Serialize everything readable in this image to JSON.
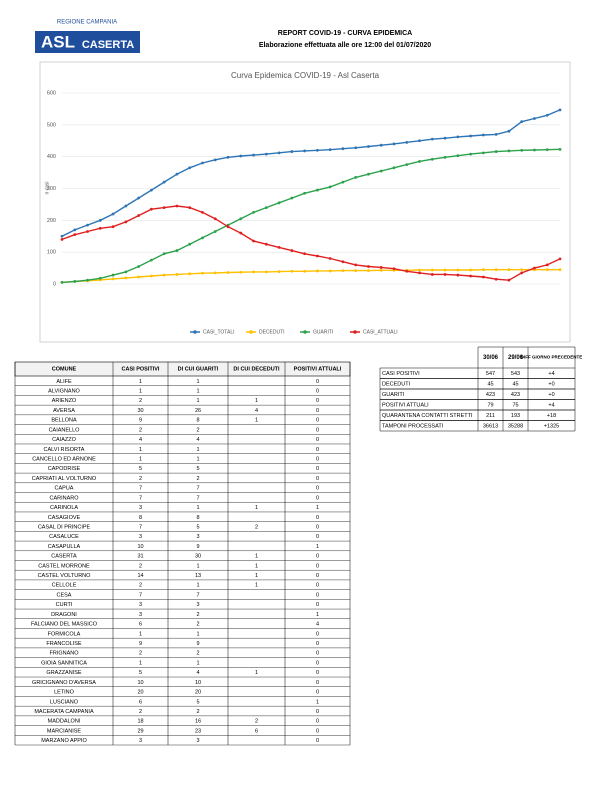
{
  "header": {
    "logo_region": "REGIONE CAMPANIA",
    "logo_name": "ASL",
    "logo_sub": "CASERTA",
    "title": "REPORT COVID-19 - CURVA EPIDEMICA",
    "subtitle": "Elaborazione effettuata alle ore 12:00 del 01/07/2020"
  },
  "chart_data": {
    "type": "line",
    "title": "Curva Epidemica COVID-19 - Asl Caserta",
    "y_label": "n casi",
    "categories": [
      null,
      null,
      null,
      null,
      null,
      null,
      null,
      null,
      null,
      null,
      null,
      null,
      null,
      null,
      null,
      null,
      null,
      null,
      null,
      null,
      null,
      null,
      null,
      null,
      null,
      null,
      null,
      null,
      null,
      null,
      null,
      null,
      null,
      null,
      null,
      null,
      null,
      null,
      null,
      null
    ],
    "ylim": [
      0,
      600
    ],
    "yticks": [
      0,
      100,
      200,
      300,
      400,
      500,
      600
    ],
    "grid": true,
    "series": [
      {
        "name": "CASI_TOTALI",
        "color": "#2e75b6",
        "values": [
          150,
          170,
          185,
          200,
          220,
          245,
          270,
          295,
          320,
          345,
          365,
          380,
          390,
          398,
          402,
          405,
          408,
          412,
          416,
          418,
          420,
          422,
          425,
          428,
          432,
          436,
          440,
          445,
          450,
          455,
          458,
          462,
          465,
          468,
          470,
          480,
          510,
          520,
          530,
          547
        ]
      },
      {
        "name": "DECEDUTI",
        "color": "#ffc000",
        "values": [
          5,
          8,
          10,
          13,
          16,
          19,
          22,
          25,
          28,
          30,
          32,
          34,
          35,
          36,
          37,
          38,
          38,
          39,
          40,
          40,
          41,
          41,
          42,
          42,
          42,
          43,
          43,
          43,
          44,
          44,
          44,
          44,
          44,
          45,
          45,
          45,
          45,
          45,
          45,
          45
        ]
      },
      {
        "name": "GUARITI",
        "color": "#2ca24c",
        "values": [
          5,
          8,
          12,
          18,
          28,
          38,
          55,
          75,
          95,
          105,
          125,
          145,
          165,
          185,
          205,
          225,
          240,
          255,
          270,
          285,
          295,
          305,
          320,
          335,
          345,
          355,
          365,
          375,
          385,
          392,
          398,
          403,
          408,
          412,
          416,
          418,
          420,
          421,
          422,
          423
        ]
      },
      {
        "name": "CASI_ATTUALI",
        "color": "#e02020",
        "values": [
          140,
          155,
          165,
          175,
          180,
          195,
          215,
          235,
          240,
          245,
          240,
          225,
          205,
          180,
          160,
          135,
          125,
          115,
          105,
          95,
          88,
          80,
          70,
          60,
          55,
          52,
          48,
          40,
          35,
          30,
          30,
          28,
          25,
          22,
          15,
          12,
          35,
          50,
          60,
          79
        ]
      }
    ]
  },
  "municipalities": {
    "header": [
      "COMUNE",
      "CASI POSITIVI",
      "DI CUI GUARITI",
      "DI CUI DECEDUTI",
      "POSITIVI ATTUALI"
    ],
    "rows": [
      [
        "ALIFE",
        1,
        1,
        null,
        0
      ],
      [
        "ALVIGNANO",
        1,
        1,
        null,
        0
      ],
      [
        "ARIENZO",
        2,
        1,
        1,
        0
      ],
      [
        "AVERSA",
        30,
        26,
        4,
        0
      ],
      [
        "BELLONA",
        9,
        8,
        1,
        0
      ],
      [
        "CAIANELLO",
        2,
        2,
        null,
        0
      ],
      [
        "CAIAZZO",
        4,
        4,
        null,
        0
      ],
      [
        "CALVI RISORTA",
        1,
        1,
        null,
        0
      ],
      [
        "CANCELLO ED ARNONE",
        1,
        1,
        null,
        0
      ],
      [
        "CAPODRISE",
        5,
        5,
        null,
        0
      ],
      [
        "CAPRIATI AL VOLTURNO",
        2,
        2,
        null,
        0
      ],
      [
        "CAPUA",
        7,
        7,
        null,
        0
      ],
      [
        "CARINARO",
        7,
        7,
        null,
        0
      ],
      [
        "CARINOLA",
        3,
        1,
        1,
        1
      ],
      [
        "CASAGIOVE",
        8,
        8,
        null,
        0
      ],
      [
        "CASAL DI PRINCIPE",
        7,
        5,
        2,
        0
      ],
      [
        "CASALUCE",
        3,
        3,
        null,
        0
      ],
      [
        "CASAPULLA",
        10,
        9,
        null,
        1
      ],
      [
        "CASERTA",
        31,
        30,
        1,
        0
      ],
      [
        "CASTEL MORRONE",
        2,
        1,
        1,
        0
      ],
      [
        "CASTEL VOLTURNO",
        14,
        13,
        1,
        0
      ],
      [
        "CELLOLE",
        2,
        1,
        1,
        0
      ],
      [
        "CESA",
        7,
        7,
        null,
        0
      ],
      [
        "CURTI",
        3,
        3,
        null,
        0
      ],
      [
        "DRAGONI",
        3,
        2,
        null,
        1
      ],
      [
        "FALCIANO DEL MASSICO",
        6,
        2,
        null,
        4
      ],
      [
        "FORMICOLA",
        1,
        1,
        null,
        0
      ],
      [
        "FRANCOLISE",
        9,
        9,
        null,
        0
      ],
      [
        "FRIGNANO",
        2,
        2,
        null,
        0
      ],
      [
        "GIOIA SANNITICA",
        1,
        1,
        null,
        0
      ],
      [
        "GRAZZANISE",
        5,
        4,
        1,
        0
      ],
      [
        "GRICIGNANO D'AVERSA",
        10,
        10,
        null,
        0
      ],
      [
        "LETINO",
        20,
        20,
        null,
        0
      ],
      [
        "LUSCIANO",
        6,
        5,
        null,
        1
      ],
      [
        "MACERATA CAMPANIA",
        2,
        2,
        null,
        0
      ],
      [
        "MADDALONI",
        18,
        16,
        2,
        0
      ],
      [
        "MARCIANISE",
        29,
        23,
        6,
        0
      ],
      [
        "MARZANO APPIO",
        3,
        3,
        null,
        0
      ]
    ]
  },
  "summary": {
    "header": [
      "30/06",
      "29/06",
      "DIFF GIORNO PRECEDENTE"
    ],
    "rows": [
      [
        "CASI POSITIVI",
        547,
        543,
        "+4"
      ],
      [
        "DECEDUTI",
        45,
        45,
        "+0"
      ],
      [
        "GUARITI",
        423,
        423,
        "+0"
      ],
      [
        "POSITIVI ATTUALI",
        79,
        75,
        "+4"
      ],
      [
        "QUARANTENA CONTATTI STRETTI",
        211,
        193,
        "+18"
      ],
      [
        "TAMPONI PROCESSATI",
        36613,
        35288,
        "+1325"
      ]
    ]
  }
}
